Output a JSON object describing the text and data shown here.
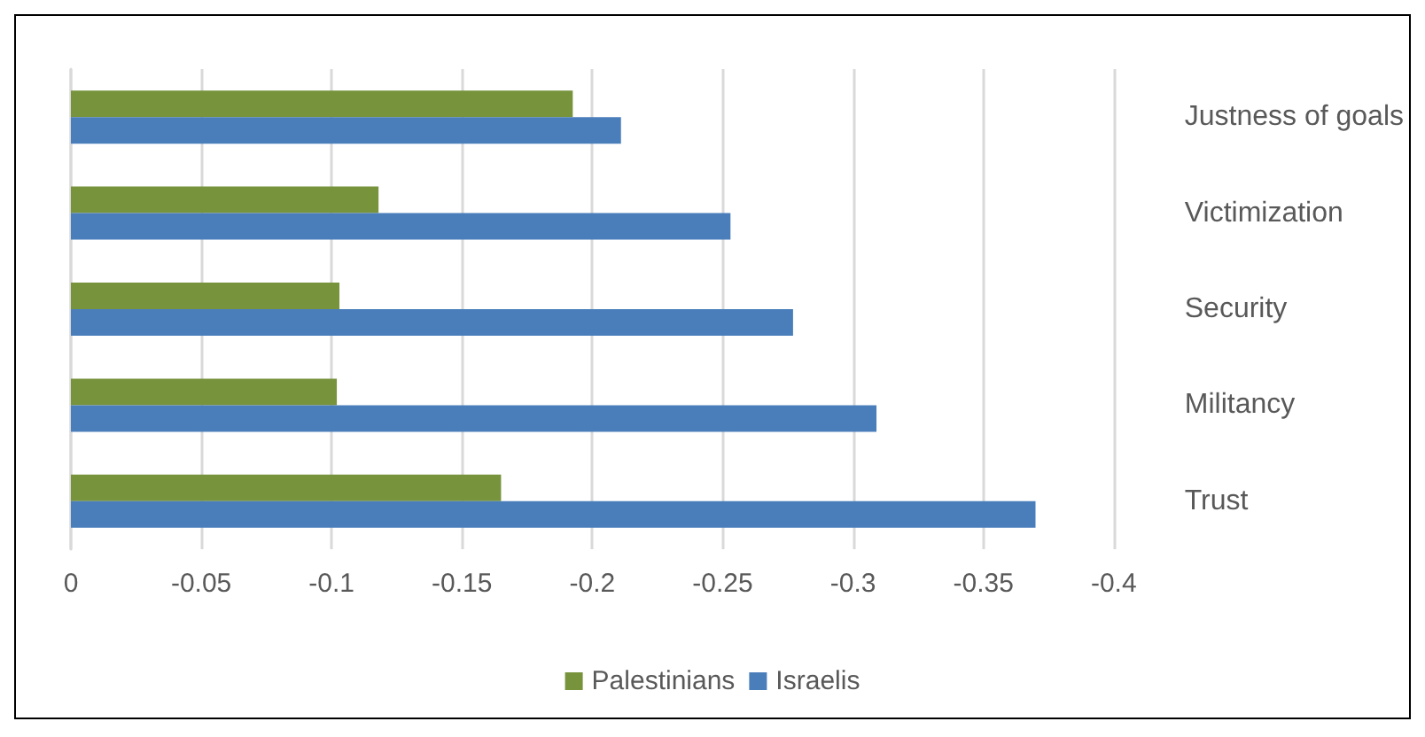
{
  "chart_data": {
    "type": "bar",
    "orientation": "horizontal",
    "categories": [
      "Justness of goals",
      "Victimization",
      "Security",
      "Militancy",
      "Trust"
    ],
    "series": [
      {
        "name": "Palestinians",
        "color": "#77933c",
        "values": [
          -0.1925,
          -0.118,
          -0.103,
          -0.102,
          -0.165
        ]
      },
      {
        "name": "Israelis",
        "color": "#4a7ebb",
        "values": [
          -0.211,
          -0.253,
          -0.277,
          -0.309,
          -0.37
        ]
      }
    ],
    "xlim": [
      0,
      -0.4
    ],
    "xticks": [
      0,
      -0.05,
      -0.1,
      -0.15,
      -0.2,
      -0.25,
      -0.3,
      -0.35,
      -0.4
    ],
    "grid": "x",
    "legend": "bottom"
  }
}
